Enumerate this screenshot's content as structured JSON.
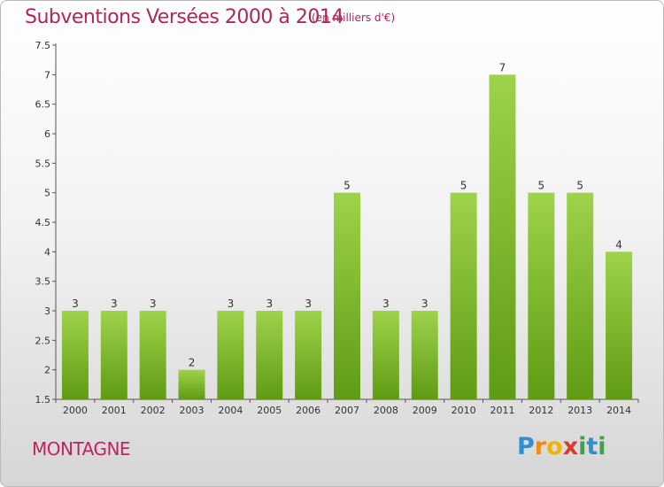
{
  "header": {
    "title": "Subventions Versées 2000 à 2014",
    "unit": "(en milliers d'€)"
  },
  "footer": {
    "commune": "MONTAGNE",
    "logo": "Proxiti"
  },
  "colors": {
    "bar_light": "#9ed34a",
    "bar_dark": "#5f9b14",
    "title": "#b3245c"
  },
  "chart_data": {
    "type": "bar",
    "title": "Subventions Versées 2000 à 2014",
    "subtitle": "(en milliers d'€)",
    "xlabel": "",
    "ylabel": "",
    "categories": [
      "2000",
      "2001",
      "2002",
      "2003",
      "2004",
      "2005",
      "2006",
      "2007",
      "2008",
      "2009",
      "2010",
      "2011",
      "2012",
      "2013",
      "2014"
    ],
    "values": [
      3,
      3,
      3,
      2,
      3,
      3,
      3,
      5,
      3,
      3,
      5,
      7,
      5,
      5,
      4
    ],
    "ylim": [
      1.5,
      7.5
    ],
    "yticks": [
      1.5,
      2,
      2.5,
      3,
      3.5,
      4,
      4.5,
      5,
      5.5,
      6,
      6.5,
      7,
      7.5
    ],
    "grid": false,
    "data_labels": true
  }
}
